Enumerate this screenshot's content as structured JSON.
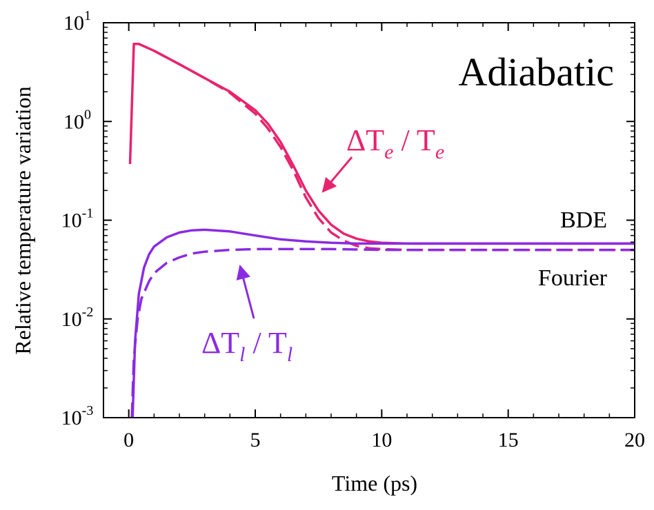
{
  "chart_data": {
    "type": "line",
    "title": "Adiabatic",
    "xlabel": "Time (ps)",
    "ylabel": "Relative temperature variation",
    "xlim": [
      -1,
      20
    ],
    "ylim": [
      0.001,
      10
    ],
    "yscale": "log",
    "x_ticks": [
      0,
      5,
      10,
      15,
      20
    ],
    "y_ticks": [
      {
        "value": 0.001,
        "base": "10",
        "exp": "-3"
      },
      {
        "value": 0.01,
        "base": "10",
        "exp": "-2"
      },
      {
        "value": 0.1,
        "base": "10",
        "exp": "-1"
      },
      {
        "value": 1,
        "base": "10",
        "exp": "0"
      },
      {
        "value": 10,
        "base": "10",
        "exp": "1"
      }
    ],
    "grid": false,
    "legend": "none",
    "curve_labels": {
      "bde": "BDE",
      "fourier": "Fourier"
    },
    "annotations": {
      "electron": {
        "delta": "ΔT",
        "sub": "e",
        "slash": " / T",
        "sub2": "e",
        "color": "#e8236e"
      },
      "lattice": {
        "delta": "ΔT",
        "sub": "l",
        "slash": " / T",
        "sub2": "l",
        "color": "#8a2be2"
      }
    },
    "series": [
      {
        "color": "#e8236e",
        "dash": "solid",
        "x": [
          0.05,
          0.2,
          0.4,
          1,
          2,
          3,
          4,
          5,
          5.5,
          6,
          6.5,
          7,
          7.5,
          8,
          8.5,
          9,
          9.5,
          10,
          11,
          12,
          15,
          20
        ],
        "y": [
          0.37,
          6.1,
          6.1,
          5.2,
          3.8,
          2.75,
          2.0,
          1.3,
          0.95,
          0.62,
          0.36,
          0.2,
          0.125,
          0.09,
          0.073,
          0.065,
          0.061,
          0.059,
          0.058,
          0.058,
          0.058,
          0.058
        ]
      },
      {
        "color": "#e8236e",
        "dash": "dashed",
        "x": [
          0.2,
          0.4,
          1,
          2,
          3,
          4,
          5,
          5.5,
          6,
          6.5,
          7,
          7.5,
          8,
          8.5,
          9,
          9.5,
          10,
          11,
          12,
          15,
          20
        ],
        "y": [
          6.1,
          6.1,
          5.2,
          3.8,
          2.75,
          1.95,
          1.2,
          0.85,
          0.55,
          0.32,
          0.17,
          0.105,
          0.075,
          0.062,
          0.055,
          0.052,
          0.051,
          0.05,
          0.05,
          0.05,
          0.05
        ]
      },
      {
        "color": "#8a2be2",
        "dash": "solid",
        "x": [
          0.15,
          0.25,
          0.4,
          0.6,
          0.8,
          1,
          1.5,
          2,
          2.5,
          3,
          4,
          5,
          6,
          7,
          8,
          9,
          10,
          12,
          15,
          20
        ],
        "y": [
          0.001,
          0.006,
          0.018,
          0.033,
          0.045,
          0.054,
          0.067,
          0.075,
          0.079,
          0.08,
          0.077,
          0.07,
          0.064,
          0.061,
          0.059,
          0.058,
          0.058,
          0.058,
          0.058,
          0.058
        ]
      },
      {
        "color": "#8a2be2",
        "dash": "dashed",
        "x": [
          0.12,
          0.2,
          0.35,
          0.5,
          0.8,
          1,
          1.5,
          2,
          2.5,
          3,
          4,
          5,
          6,
          8,
          10,
          15,
          20
        ],
        "y": [
          0.001,
          0.004,
          0.01,
          0.016,
          0.024,
          0.029,
          0.037,
          0.042,
          0.046,
          0.048,
          0.05,
          0.051,
          0.051,
          0.051,
          0.05,
          0.05,
          0.05
        ]
      }
    ]
  }
}
